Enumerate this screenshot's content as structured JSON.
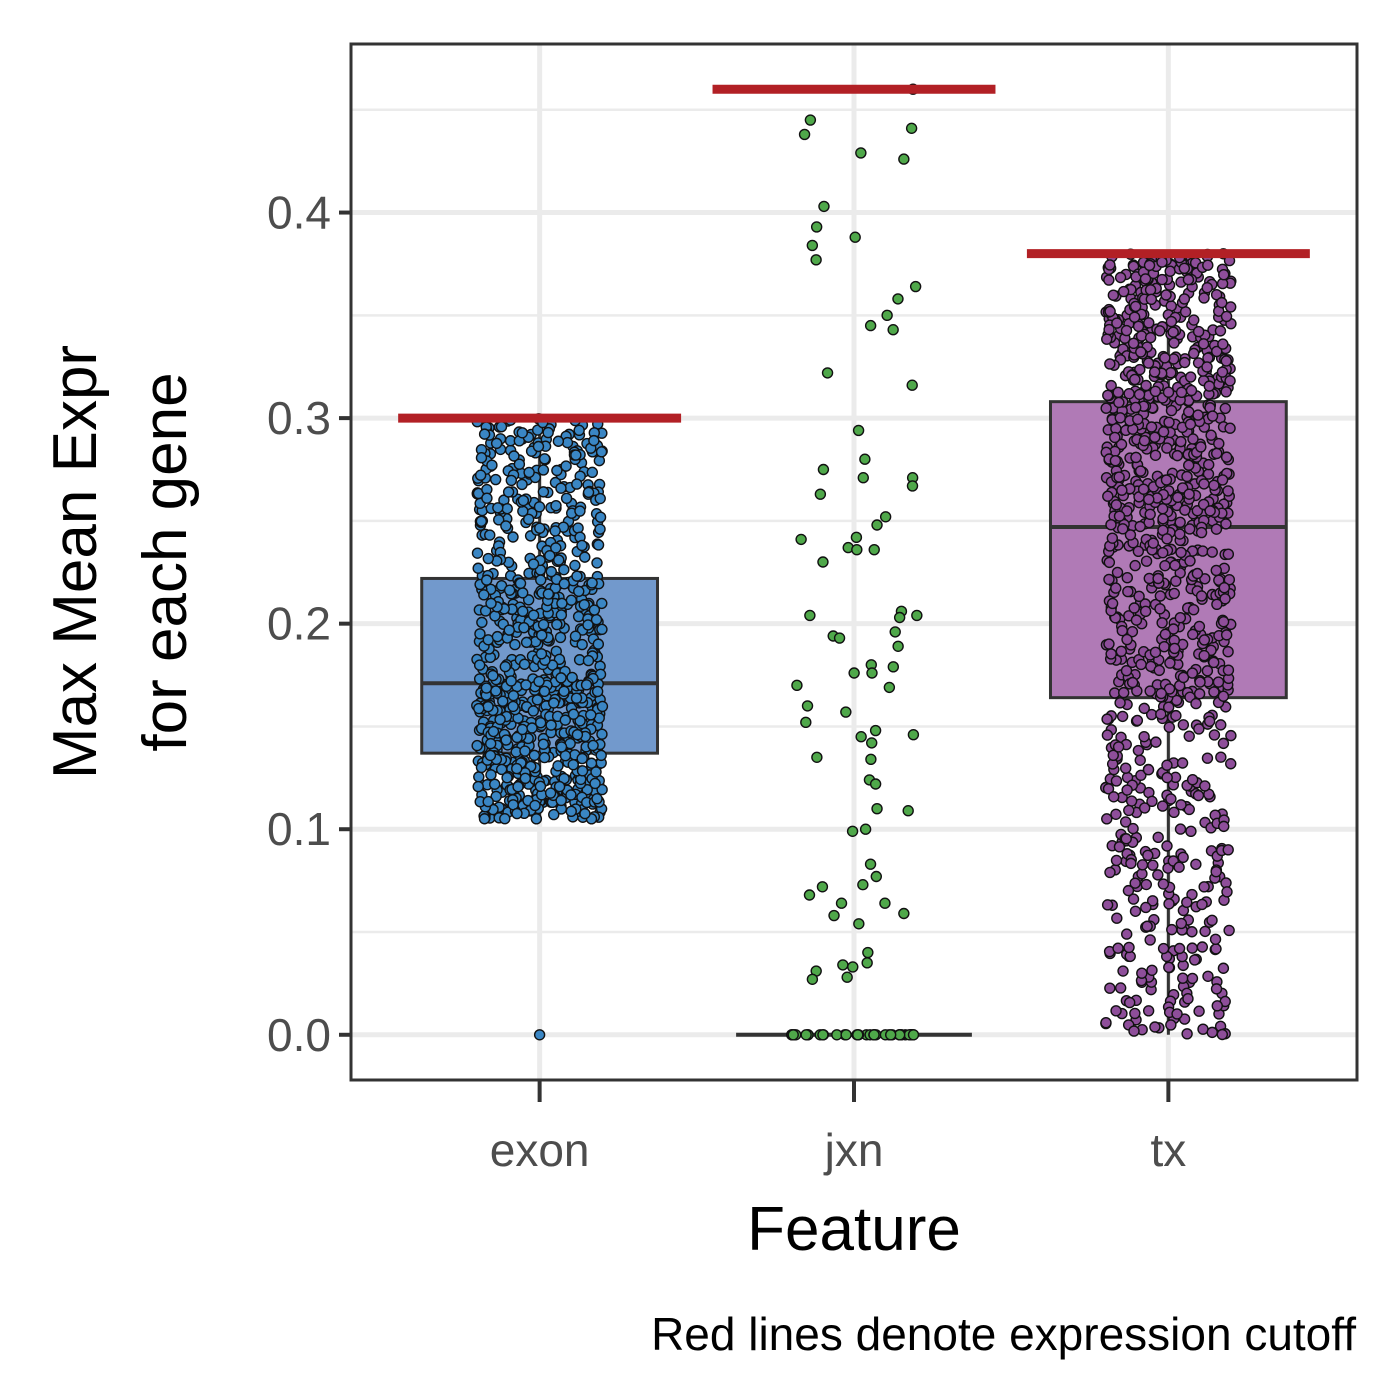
{
  "chart_data": {
    "type": "box",
    "categories": [
      "exon",
      "jxn",
      "tx"
    ],
    "xlabel": "Feature",
    "ylabel_lines": [
      "Max Mean Expr",
      "for each gene"
    ],
    "caption": "Red lines denote expression cutoff",
    "ylim": [
      -0.022,
      0.482
    ],
    "yticks": [
      0.0,
      0.1,
      0.2,
      0.3,
      0.4
    ],
    "ytick_labels": [
      "0.0",
      "0.1",
      "0.2",
      "0.3",
      "0.4"
    ],
    "grid": true,
    "legend": "none",
    "boxes": [
      {
        "category": "exon",
        "q1": 0.137,
        "median": 0.171,
        "q3": 0.222,
        "whisker_low": 0.105,
        "whisker_high": 0.3,
        "outliers": [
          0.0
        ]
      },
      {
        "category": "jxn",
        "q1": 0.0,
        "median": 0.0,
        "q3": 0.0,
        "whisker_low": 0.0,
        "whisker_high": 0.0,
        "outliers": []
      },
      {
        "category": "tx",
        "q1": 0.164,
        "median": 0.247,
        "q3": 0.308,
        "whisker_low": 0.0,
        "whisker_high": 0.38,
        "outliers": []
      }
    ],
    "cutoffs": [
      {
        "category": "exon",
        "value": 0.3
      },
      {
        "category": "jxn",
        "value": 0.46
      },
      {
        "category": "tx",
        "value": 0.38
      }
    ],
    "jitter_points": [
      {
        "category": "exon",
        "approx_count": 900,
        "range": [
          0.105,
          0.3
        ],
        "extra": [
          0.0
        ]
      },
      {
        "category": "jxn",
        "zero_count": 40,
        "values": [
          0.46,
          0.445,
          0.441,
          0.438,
          0.429,
          0.426,
          0.403,
          0.393,
          0.388,
          0.384,
          0.377,
          0.364,
          0.358,
          0.35,
          0.345,
          0.343,
          0.322,
          0.316,
          0.294,
          0.28,
          0.275,
          0.271,
          0.271,
          0.267,
          0.263,
          0.252,
          0.248,
          0.242,
          0.241,
          0.237,
          0.236,
          0.236,
          0.23,
          0.206,
          0.204,
          0.204,
          0.203,
          0.196,
          0.194,
          0.193,
          0.189,
          0.18,
          0.179,
          0.176,
          0.176,
          0.17,
          0.169,
          0.16,
          0.157,
          0.152,
          0.148,
          0.146,
          0.145,
          0.142,
          0.135,
          0.134,
          0.124,
          0.122,
          0.11,
          0.109,
          0.1,
          0.099,
          0.083,
          0.077,
          0.073,
          0.072,
          0.068,
          0.064,
          0.064,
          0.059,
          0.058,
          0.054,
          0.04,
          0.035,
          0.034,
          0.033,
          0.031,
          0.028,
          0.027
        ]
      },
      {
        "category": "tx",
        "approx_count": 1100,
        "range": [
          0.0,
          0.38
        ]
      }
    ],
    "colors": {
      "exon_fill": "#7299cc",
      "exon_point": "#3a86c4",
      "jxn_point": "#4fa84a",
      "tx_fill": "#b07ab6",
      "tx_point": "#8e4e9a",
      "cutoff_line": "#b22025",
      "box_outline": "#333333",
      "grid": "#ebebeb",
      "panel_border": "#333333"
    }
  }
}
